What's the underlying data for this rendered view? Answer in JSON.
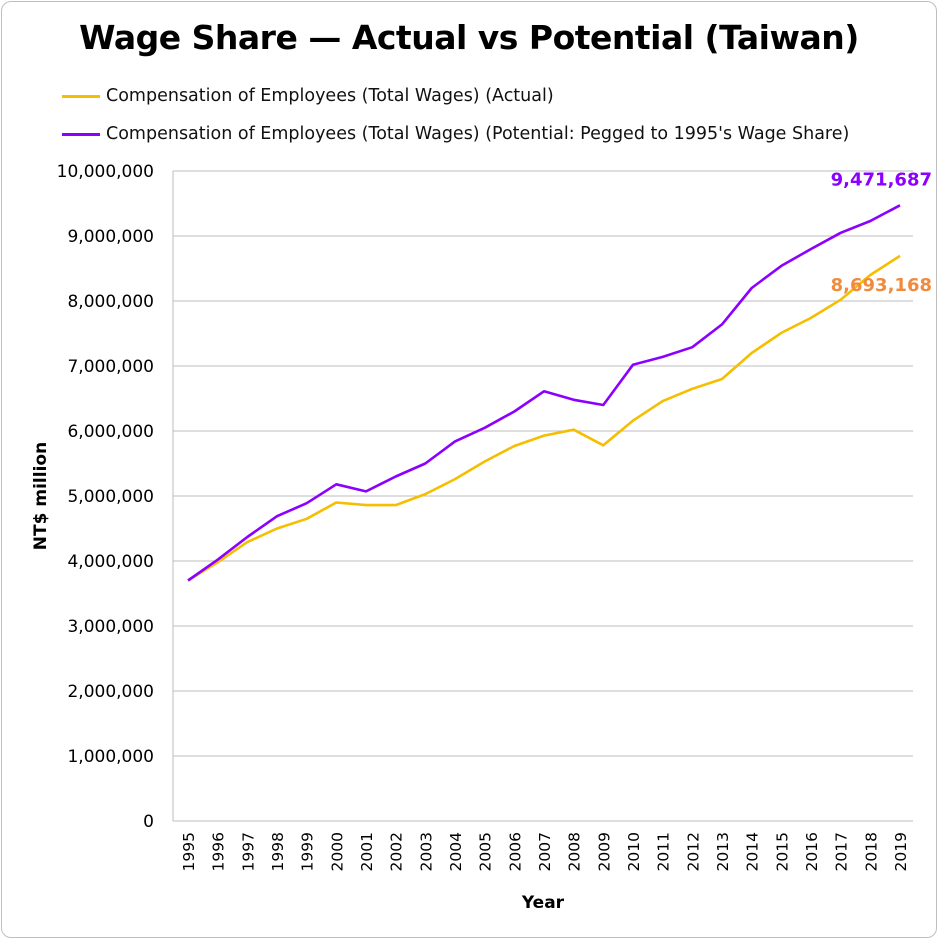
{
  "chart_data": {
    "type": "line",
    "title": "Wage Share — Actual vs Potential (Taiwan)",
    "xlabel": "Year",
    "ylabel": "NT$ million",
    "ylim": [
      0,
      10000000
    ],
    "yticks": [
      "0",
      "1,000,000",
      "2,000,000",
      "3,000,000",
      "4,000,000",
      "5,000,000",
      "6,000,000",
      "7,000,000",
      "8,000,000",
      "9,000,000",
      "10,000,000"
    ],
    "grid": "horizontal",
    "legend_position": "top-left",
    "x": [
      "1995",
      "1996",
      "1997",
      "1998",
      "1999",
      "2000",
      "2001",
      "2002",
      "2003",
      "2004",
      "2005",
      "2006",
      "2007",
      "2008",
      "2009",
      "2010",
      "2011",
      "2012",
      "2013",
      "2014",
      "2015",
      "2016",
      "2017",
      "2018",
      "2019"
    ],
    "series": [
      {
        "name": "Compensation of Employees (Total Wages) (Actual)",
        "color": "#F5BE00",
        "label_color": "#F08A3C",
        "end_label": "8,693,168",
        "values": [
          3700000,
          3980000,
          4290000,
          4500000,
          4650000,
          4900000,
          4860000,
          4860000,
          5030000,
          5260000,
          5530000,
          5770000,
          5930000,
          6020000,
          5780000,
          6160000,
          6460000,
          6650000,
          6800000,
          7200000,
          7510000,
          7740000,
          8020000,
          8400000,
          8693168
        ]
      },
      {
        "name": "Compensation of Employees (Total Wages) (Potential: Pegged to 1995's Wage Share)",
        "color": "#8B00FF",
        "label_color": "#8B00FF",
        "end_label": "9,471,687",
        "values": [
          3700000,
          4020000,
          4370000,
          4690000,
          4890000,
          5180000,
          5070000,
          5300000,
          5500000,
          5840000,
          6050000,
          6300000,
          6610000,
          6480000,
          6400000,
          7020000,
          7140000,
          7290000,
          7640000,
          8200000,
          8540000,
          8800000,
          9050000,
          9230000,
          9471687
        ]
      }
    ]
  }
}
